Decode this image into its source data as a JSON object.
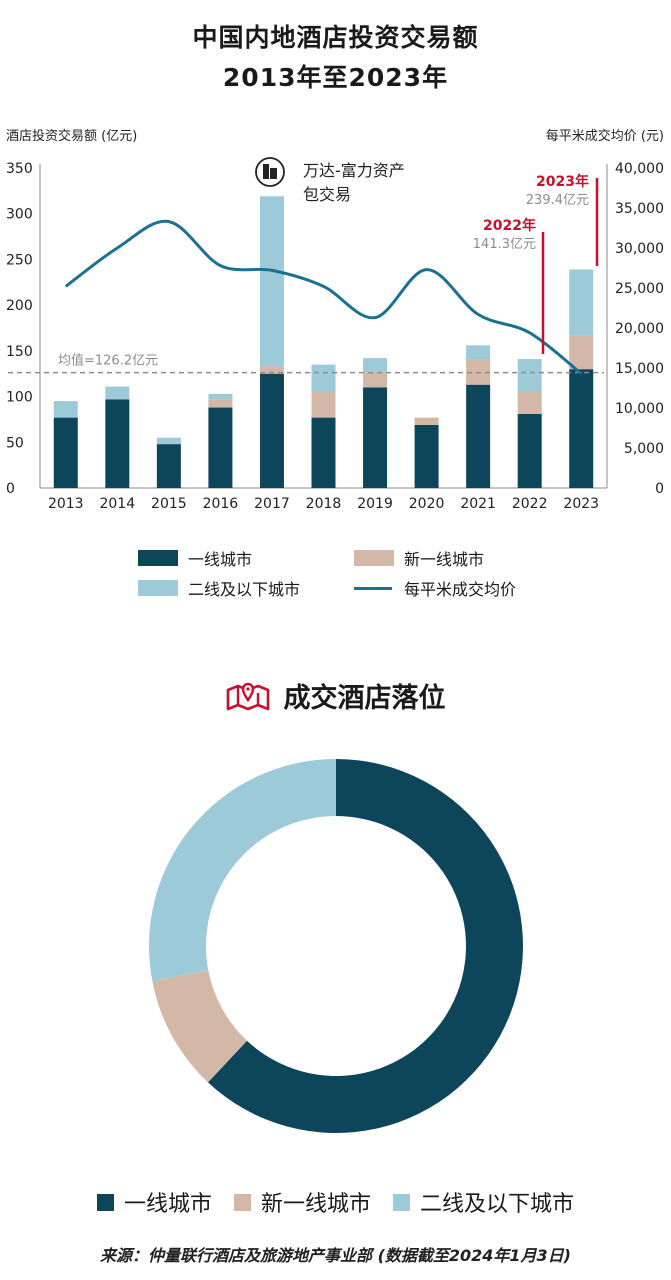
{
  "title_line1": "中国内地酒店投资交易额",
  "title_line2": "2013年至2023年",
  "chart_data": {
    "type": "bar",
    "categories": [
      "2013",
      "2014",
      "2015",
      "2016",
      "2017",
      "2018",
      "2019",
      "2020",
      "2021",
      "2022",
      "2023"
    ],
    "series": [
      {
        "name": "一线城市",
        "values": [
          77,
          97,
          48,
          88,
          125,
          77,
          110,
          69,
          113,
          81,
          130
        ]
      },
      {
        "name": "新一线城市",
        "values": [
          0,
          0,
          0,
          9,
          8,
          28,
          17,
          8,
          28,
          24,
          37
        ]
      },
      {
        "name": "二线及以下城市",
        "values": [
          18,
          14,
          7,
          6,
          186,
          30,
          15,
          0,
          15,
          36,
          72
        ]
      }
    ],
    "line_series": {
      "name": "每平米成交均价",
      "axis": "right",
      "values": [
        25200,
        30000,
        33300,
        27800,
        27200,
        25200,
        21300,
        27300,
        21700,
        19400,
        14300
      ]
    },
    "left_axis": {
      "label": "酒店投资交易额 (亿元)",
      "min": 0,
      "max": 350,
      "ticks": [
        "0",
        "50",
        "100",
        "150",
        "200",
        "250",
        "300",
        "350"
      ]
    },
    "right_axis": {
      "label": "每平米成交均价 (元)",
      "min": 0,
      "max": 40000,
      "ticks": [
        "0",
        "5,000",
        "10,000",
        "15,000",
        "20,000",
        "25,000",
        "30,000",
        "35,000",
        "40,000"
      ]
    },
    "average": {
      "label": "均值=126.2亿元",
      "value": 126.2
    },
    "annotations": [
      {
        "label_line1": "万达-富力资产",
        "label_line2": "包交易",
        "year": "2017"
      },
      {
        "year_label": "2022年",
        "value_label": "141.3亿元"
      },
      {
        "year_label": "2023年",
        "value_label": "239.4亿元"
      }
    ],
    "colors": {
      "tier1": "#0d455b",
      "newtier1": "#d3b8a7",
      "tier2": "#9ccad8",
      "line": "#1c7193",
      "accent": "#c8102e"
    }
  },
  "legend_top": {
    "tier1": "一线城市",
    "newtier1": "新一线城市",
    "tier2": "二线及以下城市",
    "line": "每平米成交均价"
  },
  "section_title": "成交酒店落位",
  "donut_data": {
    "type": "pie",
    "slices": [
      {
        "name": "一线城市",
        "fraction": 0.62,
        "color": "#0d455b"
      },
      {
        "name": "新一线城市",
        "fraction": 0.1,
        "color": "#d3b8a7"
      },
      {
        "name": "二线及以下城市",
        "fraction": 0.28,
        "color": "#9ccad8"
      }
    ]
  },
  "legend_bottom": {
    "tier1": "一线城市",
    "newtier1": "新一线城市",
    "tier2": "二线及以下城市"
  },
  "source": "来源：仲量联行酒店及旅游地产事业部 (数据截至2024年1月3日)"
}
